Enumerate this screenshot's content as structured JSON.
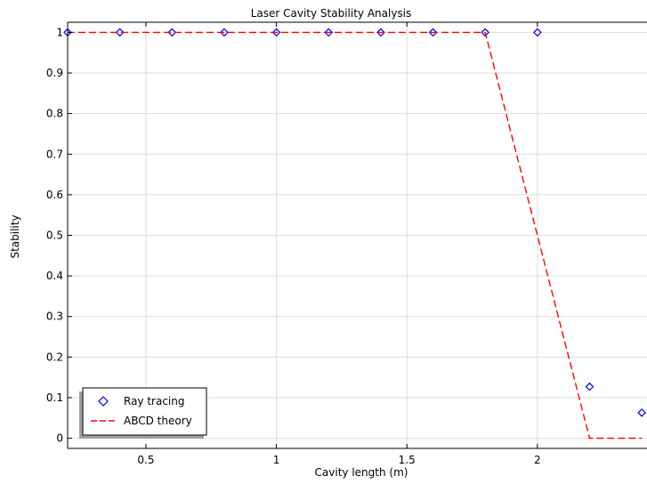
{
  "chart_data": {
    "type": "line",
    "title": "Laser Cavity Stability Analysis",
    "xlabel": "Cavity length (m)",
    "ylabel": "Stability",
    "xlim": [
      0.2,
      2.42
    ],
    "ylim": [
      -0.025,
      1.025
    ],
    "xticks": [
      0.5,
      1,
      1.5,
      2
    ],
    "xtick_labels": [
      "0.5",
      "1",
      "1.5",
      "2"
    ],
    "yticks": [
      0,
      0.1,
      0.2,
      0.3,
      0.4,
      0.5,
      0.6,
      0.7,
      0.8,
      0.9,
      1
    ],
    "ytick_labels": [
      "0",
      "0.1",
      "0.2",
      "0.3",
      "0.4",
      "0.5",
      "0.6",
      "0.7",
      "0.8",
      "0.9",
      "1"
    ],
    "grid": true,
    "legend_position": "bottom-left",
    "series": [
      {
        "name": "Ray tracing",
        "kind": "scatter",
        "marker": "diamond",
        "color": "#0000ff",
        "x": [
          0.2,
          0.4,
          0.6,
          0.8,
          1.0,
          1.2,
          1.4,
          1.6,
          1.8,
          2.0,
          2.2,
          2.4
        ],
        "y": [
          1,
          1,
          1,
          1,
          1,
          1,
          1,
          1,
          1,
          1,
          0.127,
          0.063
        ]
      },
      {
        "name": "ABCD theory",
        "kind": "line",
        "style": "dashed",
        "color": "#ff0000",
        "x": [
          0.2,
          0.4,
          0.6,
          0.8,
          1.0,
          1.2,
          1.4,
          1.6,
          1.8,
          2.0,
          2.2,
          2.4
        ],
        "y": [
          1,
          1,
          1,
          1,
          1,
          1,
          1,
          1,
          1,
          0.5,
          0,
          0
        ]
      }
    ]
  }
}
